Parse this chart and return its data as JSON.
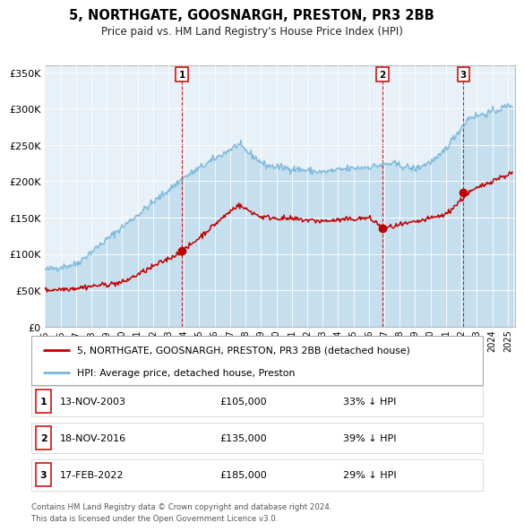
{
  "title": "5, NORTHGATE, GOOSNARGH, PRESTON, PR3 2BB",
  "subtitle": "Price paid vs. HM Land Registry's House Price Index (HPI)",
  "hpi_color": "#7ab8d9",
  "price_color": "#c00000",
  "plot_bg": "#e8f0f8",
  "ylim": [
    0,
    360000
  ],
  "yticks": [
    0,
    50000,
    100000,
    150000,
    200000,
    250000,
    300000,
    350000
  ],
  "ytick_labels": [
    "£0",
    "£50K",
    "£100K",
    "£150K",
    "£200K",
    "£250K",
    "£300K",
    "£350K"
  ],
  "sale_dates_num": [
    2003.87,
    2016.88,
    2022.12
  ],
  "sale_prices": [
    105000,
    135000,
    185000
  ],
  "sale_labels": [
    "1",
    "2",
    "3"
  ],
  "legend_line1": "5, NORTHGATE, GOOSNARGH, PRESTON, PR3 2BB (detached house)",
  "legend_line2": "HPI: Average price, detached house, Preston",
  "table_entries": [
    {
      "label": "1",
      "date": "13-NOV-2003",
      "price": "£105,000",
      "pct": "33% ↓ HPI"
    },
    {
      "label": "2",
      "date": "18-NOV-2016",
      "price": "£135,000",
      "pct": "39% ↓ HPI"
    },
    {
      "label": "3",
      "date": "17-FEB-2022",
      "price": "£185,000",
      "pct": "29% ↓ HPI"
    }
  ],
  "footer": "Contains HM Land Registry data © Crown copyright and database right 2024.\nThis data is licensed under the Open Government Licence v3.0.",
  "xmin": 1995.0,
  "xmax": 2025.5,
  "xticks": [
    1995,
    1996,
    1997,
    1998,
    1999,
    2000,
    2001,
    2002,
    2003,
    2004,
    2005,
    2006,
    2007,
    2008,
    2009,
    2010,
    2011,
    2012,
    2013,
    2014,
    2015,
    2016,
    2017,
    2018,
    2019,
    2020,
    2021,
    2022,
    2023,
    2024,
    2025
  ]
}
